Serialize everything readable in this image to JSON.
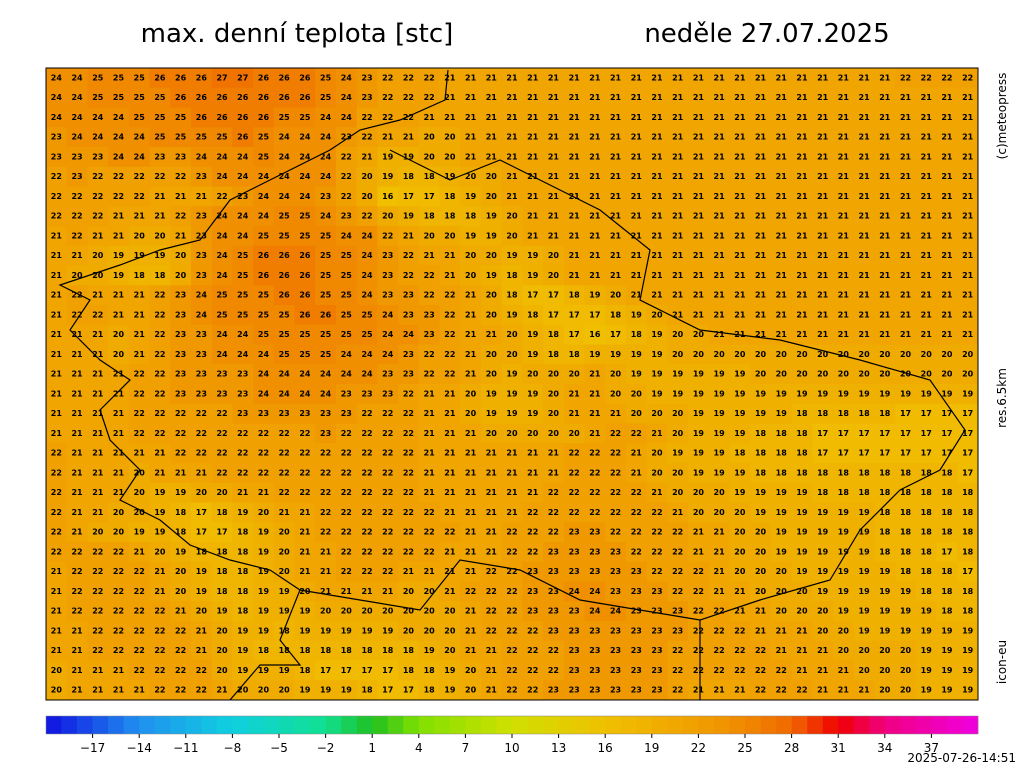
{
  "map": {
    "title": "max. denní teplota [stc]",
    "date": "neděle 27.07.2025",
    "credit": "(c)meteopress",
    "resolution": "res.6.5km",
    "model": "icon-eu",
    "timestamp": "2025-07-26-14:51",
    "colorbar": {
      "lim": [
        -20,
        40
      ],
      "step": 1,
      "stops": [
        [
          -20,
          "#1010e0"
        ],
        [
          -14,
          "#2090f0"
        ],
        [
          -8,
          "#10d0e0"
        ],
        [
          -2,
          "#10e090"
        ],
        [
          1,
          "#20c020"
        ],
        [
          4,
          "#80e000"
        ],
        [
          10,
          "#d0e000"
        ],
        [
          13,
          "#e0d000"
        ],
        [
          16,
          "#f0c000"
        ],
        [
          19,
          "#f0b000"
        ],
        [
          22,
          "#f0a000"
        ],
        [
          25,
          "#f08800"
        ],
        [
          28,
          "#f06800"
        ],
        [
          31,
          "#f00000"
        ],
        [
          34,
          "#f00080"
        ],
        [
          40,
          "#f000e0"
        ]
      ],
      "ticks": [
        {
          "value": -17,
          "label": "−17"
        },
        {
          "value": -14,
          "label": "−14"
        },
        {
          "value": -11,
          "label": "−11"
        },
        {
          "value": -8,
          "label": "−8"
        },
        {
          "value": -5,
          "label": "−5"
        },
        {
          "value": -2,
          "label": "−2"
        },
        1,
        4,
        7,
        10,
        13,
        16,
        19,
        22,
        25,
        28,
        31,
        34,
        37
      ]
    },
    "grid": [
      [
        24,
        24,
        25,
        25,
        25,
        26,
        26,
        26,
        27,
        27,
        26,
        26,
        26,
        25,
        24,
        23,
        22,
        22,
        22,
        21,
        21,
        21,
        21,
        21,
        21,
        21,
        21,
        21,
        21,
        21,
        21,
        21,
        21,
        21,
        21,
        21,
        21,
        21,
        21,
        21,
        21,
        22,
        22,
        22,
        22
      ],
      [
        24,
        24,
        25,
        25,
        25,
        25,
        26,
        26,
        26,
        26,
        26,
        26,
        26,
        25,
        24,
        23,
        22,
        22,
        22,
        21,
        21,
        21,
        21,
        21,
        21,
        21,
        21,
        21,
        21,
        21,
        21,
        21,
        21,
        21,
        21,
        21,
        21,
        21,
        21,
        21,
        21,
        21,
        21,
        21,
        21
      ],
      [
        24,
        24,
        24,
        24,
        25,
        25,
        25,
        26,
        26,
        26,
        26,
        25,
        25,
        24,
        24,
        22,
        22,
        22,
        21,
        21,
        21,
        21,
        21,
        21,
        21,
        21,
        21,
        21,
        21,
        21,
        21,
        21,
        21,
        21,
        21,
        21,
        21,
        21,
        21,
        21,
        21,
        21,
        21,
        21,
        21
      ],
      [
        23,
        24,
        24,
        24,
        24,
        25,
        25,
        25,
        25,
        26,
        25,
        24,
        24,
        24,
        23,
        22,
        21,
        21,
        20,
        20,
        21,
        21,
        21,
        21,
        21,
        21,
        21,
        21,
        21,
        21,
        21,
        21,
        21,
        21,
        21,
        21,
        21,
        21,
        21,
        21,
        21,
        21,
        21,
        21,
        21
      ],
      [
        23,
        23,
        23,
        24,
        24,
        23,
        23,
        24,
        24,
        24,
        25,
        24,
        24,
        24,
        22,
        21,
        19,
        19,
        20,
        20,
        21,
        21,
        21,
        21,
        21,
        21,
        21,
        21,
        21,
        21,
        21,
        21,
        21,
        21,
        21,
        21,
        21,
        21,
        21,
        21,
        21,
        21,
        21,
        21,
        21
      ],
      [
        22,
        23,
        22,
        22,
        22,
        22,
        22,
        23,
        24,
        24,
        24,
        24,
        24,
        24,
        22,
        20,
        19,
        18,
        18,
        19,
        20,
        20,
        21,
        21,
        21,
        21,
        21,
        21,
        21,
        21,
        21,
        21,
        21,
        21,
        21,
        21,
        21,
        21,
        21,
        21,
        21,
        21,
        21,
        21,
        21
      ],
      [
        22,
        22,
        22,
        22,
        22,
        21,
        21,
        21,
        22,
        23,
        24,
        24,
        24,
        23,
        22,
        20,
        16,
        17,
        17,
        18,
        19,
        20,
        21,
        21,
        21,
        21,
        21,
        21,
        21,
        21,
        21,
        21,
        21,
        21,
        21,
        21,
        21,
        21,
        21,
        21,
        21,
        21,
        21,
        21,
        21
      ],
      [
        22,
        22,
        22,
        21,
        21,
        21,
        22,
        23,
        24,
        24,
        24,
        25,
        25,
        24,
        23,
        22,
        20,
        19,
        18,
        18,
        18,
        19,
        20,
        21,
        21,
        21,
        21,
        21,
        21,
        21,
        21,
        21,
        21,
        21,
        21,
        21,
        21,
        21,
        21,
        21,
        21,
        21,
        21,
        21,
        21
      ],
      [
        21,
        22,
        21,
        21,
        20,
        20,
        21,
        23,
        24,
        24,
        25,
        25,
        25,
        25,
        24,
        24,
        22,
        21,
        20,
        20,
        19,
        19,
        20,
        21,
        21,
        21,
        21,
        21,
        21,
        21,
        21,
        21,
        21,
        21,
        21,
        21,
        21,
        21,
        21,
        21,
        21,
        21,
        21,
        21,
        21
      ],
      [
        21,
        21,
        20,
        19,
        19,
        19,
        20,
        23,
        24,
        25,
        26,
        26,
        26,
        25,
        25,
        24,
        23,
        22,
        21,
        21,
        20,
        20,
        19,
        19,
        20,
        21,
        21,
        21,
        21,
        21,
        21,
        21,
        21,
        21,
        21,
        21,
        21,
        21,
        21,
        21,
        21,
        21,
        21,
        21,
        21
      ],
      [
        21,
        20,
        20,
        19,
        18,
        18,
        20,
        23,
        24,
        25,
        26,
        26,
        26,
        25,
        25,
        24,
        23,
        22,
        22,
        21,
        20,
        19,
        18,
        19,
        20,
        21,
        21,
        21,
        21,
        21,
        21,
        21,
        21,
        21,
        21,
        21,
        21,
        21,
        21,
        21,
        21,
        21,
        21,
        21,
        21
      ],
      [
        21,
        22,
        21,
        21,
        21,
        22,
        23,
        24,
        25,
        25,
        25,
        26,
        26,
        25,
        25,
        24,
        23,
        23,
        22,
        22,
        21,
        20,
        18,
        17,
        17,
        18,
        19,
        20,
        21,
        21,
        21,
        21,
        21,
        21,
        21,
        21,
        21,
        21,
        21,
        21,
        21,
        21,
        21,
        21,
        21
      ],
      [
        21,
        22,
        22,
        21,
        21,
        22,
        23,
        24,
        25,
        25,
        25,
        25,
        26,
        26,
        25,
        25,
        24,
        23,
        23,
        22,
        21,
        20,
        19,
        18,
        17,
        17,
        17,
        18,
        19,
        20,
        21,
        21,
        21,
        21,
        21,
        21,
        21,
        21,
        21,
        21,
        21,
        21,
        21,
        21,
        21
      ],
      [
        21,
        21,
        21,
        20,
        21,
        22,
        23,
        23,
        24,
        24,
        25,
        25,
        25,
        25,
        25,
        25,
        24,
        24,
        23,
        22,
        21,
        21,
        20,
        19,
        18,
        17,
        16,
        17,
        18,
        19,
        20,
        20,
        21,
        21,
        21,
        21,
        21,
        21,
        21,
        21,
        21,
        21,
        21,
        21,
        21
      ],
      [
        21,
        21,
        21,
        20,
        21,
        22,
        23,
        23,
        24,
        24,
        24,
        25,
        25,
        25,
        24,
        24,
        24,
        23,
        22,
        22,
        21,
        20,
        20,
        19,
        18,
        18,
        19,
        19,
        19,
        19,
        20,
        20,
        20,
        20,
        20,
        20,
        20,
        20,
        20,
        20,
        20,
        20,
        20,
        20,
        20
      ],
      [
        21,
        21,
        21,
        21,
        22,
        22,
        23,
        23,
        23,
        23,
        24,
        24,
        24,
        24,
        24,
        24,
        23,
        23,
        22,
        22,
        21,
        20,
        19,
        20,
        20,
        20,
        21,
        20,
        19,
        19,
        19,
        19,
        19,
        19,
        20,
        20,
        20,
        20,
        20,
        20,
        20,
        20,
        20,
        20,
        20
      ],
      [
        21,
        21,
        21,
        21,
        22,
        22,
        23,
        23,
        23,
        23,
        24,
        24,
        24,
        24,
        23,
        23,
        23,
        22,
        21,
        21,
        20,
        19,
        19,
        19,
        20,
        21,
        21,
        20,
        20,
        19,
        19,
        19,
        19,
        19,
        19,
        19,
        19,
        19,
        19,
        19,
        19,
        19,
        19,
        19,
        19
      ],
      [
        21,
        21,
        21,
        21,
        22,
        22,
        22,
        22,
        22,
        23,
        23,
        23,
        23,
        23,
        23,
        22,
        22,
        22,
        21,
        21,
        20,
        19,
        19,
        19,
        20,
        21,
        21,
        21,
        20,
        20,
        20,
        19,
        19,
        19,
        19,
        19,
        18,
        18,
        18,
        18,
        18,
        17,
        17,
        17,
        17
      ],
      [
        21,
        21,
        21,
        21,
        22,
        22,
        22,
        22,
        22,
        22,
        22,
        22,
        22,
        23,
        22,
        22,
        22,
        22,
        21,
        21,
        21,
        20,
        20,
        20,
        20,
        20,
        21,
        22,
        22,
        21,
        20,
        19,
        19,
        19,
        18,
        18,
        18,
        17,
        17,
        17,
        17,
        17,
        17,
        17,
        17
      ],
      [
        22,
        21,
        21,
        21,
        21,
        21,
        22,
        22,
        22,
        22,
        22,
        22,
        22,
        22,
        22,
        22,
        22,
        22,
        21,
        21,
        21,
        21,
        21,
        21,
        21,
        22,
        22,
        22,
        21,
        20,
        19,
        19,
        19,
        18,
        18,
        18,
        18,
        17,
        17,
        17,
        17,
        17,
        17,
        17,
        17
      ],
      [
        22,
        21,
        21,
        21,
        20,
        21,
        21,
        21,
        22,
        22,
        22,
        22,
        22,
        22,
        22,
        22,
        22,
        22,
        21,
        21,
        21,
        21,
        21,
        21,
        21,
        22,
        22,
        22,
        21,
        20,
        20,
        19,
        19,
        19,
        18,
        18,
        18,
        18,
        18,
        18,
        18,
        18,
        18,
        18,
        17
      ],
      [
        22,
        21,
        21,
        21,
        20,
        19,
        19,
        20,
        20,
        21,
        21,
        22,
        22,
        22,
        22,
        22,
        22,
        22,
        21,
        21,
        21,
        21,
        21,
        21,
        22,
        22,
        22,
        22,
        22,
        21,
        20,
        20,
        20,
        19,
        19,
        19,
        19,
        18,
        18,
        18,
        18,
        18,
        18,
        18,
        18
      ],
      [
        22,
        21,
        21,
        20,
        20,
        19,
        18,
        17,
        18,
        19,
        20,
        21,
        21,
        22,
        22,
        22,
        22,
        22,
        22,
        21,
        21,
        21,
        21,
        22,
        22,
        22,
        22,
        22,
        22,
        22,
        21,
        20,
        20,
        20,
        19,
        19,
        19,
        19,
        19,
        19,
        18,
        18,
        18,
        18,
        18
      ],
      [
        22,
        21,
        20,
        20,
        19,
        19,
        18,
        17,
        17,
        18,
        19,
        20,
        21,
        22,
        22,
        22,
        22,
        22,
        22,
        22,
        21,
        21,
        22,
        22,
        22,
        23,
        23,
        22,
        22,
        22,
        22,
        21,
        21,
        20,
        20,
        19,
        19,
        19,
        19,
        19,
        18,
        18,
        18,
        18,
        18
      ],
      [
        22,
        22,
        22,
        22,
        21,
        20,
        19,
        18,
        18,
        18,
        19,
        20,
        21,
        21,
        22,
        22,
        22,
        22,
        22,
        21,
        21,
        21,
        22,
        22,
        23,
        23,
        23,
        23,
        22,
        22,
        22,
        21,
        21,
        20,
        20,
        19,
        19,
        19,
        19,
        19,
        18,
        18,
        18,
        17,
        18
      ],
      [
        21,
        22,
        22,
        22,
        22,
        21,
        20,
        19,
        18,
        18,
        19,
        20,
        21,
        21,
        22,
        22,
        22,
        21,
        21,
        21,
        21,
        22,
        22,
        23,
        23,
        23,
        23,
        23,
        23,
        22,
        22,
        22,
        21,
        20,
        20,
        20,
        19,
        19,
        19,
        19,
        19,
        18,
        18,
        18,
        17
      ],
      [
        21,
        22,
        22,
        22,
        22,
        21,
        20,
        19,
        18,
        18,
        19,
        19,
        20,
        21,
        21,
        21,
        21,
        20,
        20,
        21,
        22,
        22,
        22,
        23,
        23,
        24,
        24,
        23,
        23,
        23,
        22,
        22,
        21,
        21,
        20,
        20,
        20,
        19,
        19,
        19,
        19,
        19,
        18,
        18,
        18
      ],
      [
        21,
        22,
        22,
        22,
        22,
        22,
        21,
        20,
        19,
        18,
        19,
        19,
        19,
        20,
        20,
        20,
        20,
        20,
        20,
        20,
        21,
        22,
        22,
        23,
        23,
        23,
        24,
        24,
        23,
        23,
        23,
        22,
        22,
        21,
        21,
        20,
        20,
        20,
        19,
        19,
        19,
        19,
        19,
        18,
        18
      ],
      [
        21,
        21,
        22,
        22,
        22,
        22,
        22,
        21,
        20,
        19,
        19,
        18,
        19,
        19,
        19,
        19,
        19,
        20,
        20,
        20,
        21,
        22,
        22,
        22,
        23,
        23,
        23,
        23,
        23,
        23,
        23,
        22,
        22,
        22,
        21,
        21,
        21,
        20,
        20,
        19,
        19,
        19,
        19,
        19,
        19
      ],
      [
        21,
        21,
        22,
        22,
        22,
        22,
        22,
        21,
        20,
        19,
        18,
        18,
        18,
        18,
        18,
        18,
        18,
        18,
        19,
        20,
        21,
        21,
        22,
        22,
        22,
        23,
        23,
        23,
        23,
        23,
        22,
        22,
        22,
        22,
        22,
        21,
        21,
        21,
        20,
        20,
        20,
        20,
        19,
        19,
        19
      ],
      [
        20,
        21,
        21,
        21,
        22,
        22,
        22,
        22,
        20,
        19,
        19,
        19,
        18,
        17,
        17,
        17,
        17,
        18,
        18,
        19,
        20,
        21,
        22,
        22,
        22,
        23,
        23,
        23,
        23,
        23,
        22,
        22,
        22,
        22,
        22,
        22,
        21,
        21,
        21,
        20,
        20,
        20,
        19,
        19,
        19
      ],
      [
        20,
        21,
        21,
        21,
        21,
        22,
        22,
        22,
        21,
        20,
        20,
        20,
        19,
        19,
        19,
        18,
        17,
        17,
        18,
        19,
        20,
        21,
        22,
        22,
        23,
        23,
        23,
        23,
        23,
        23,
        22,
        21,
        21,
        21,
        22,
        22,
        22,
        21,
        21,
        21,
        20,
        20,
        19,
        19,
        19
      ]
    ]
  }
}
